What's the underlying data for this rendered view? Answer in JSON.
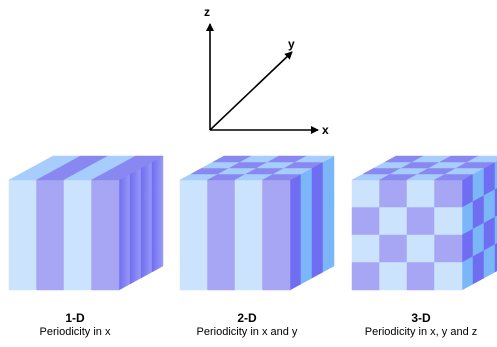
{
  "axes": {
    "x_label": "x",
    "y_label": "y",
    "z_label": "z"
  },
  "colors": {
    "light": "#cbe3fc",
    "purple": "#a7a6f4",
    "top_light": "#a6cdfb",
    "top_purple": "#8988f1",
    "side_light": "#7bb7f8",
    "side_purple": "#6f6ef2"
  },
  "crystals": [
    {
      "title": "1-D",
      "subtitle": "Periodicity in x"
    },
    {
      "title": "2-D",
      "subtitle": "Periodicity in x and y"
    },
    {
      "title": "3-D",
      "subtitle": "Periodicity in x, y and z"
    }
  ]
}
